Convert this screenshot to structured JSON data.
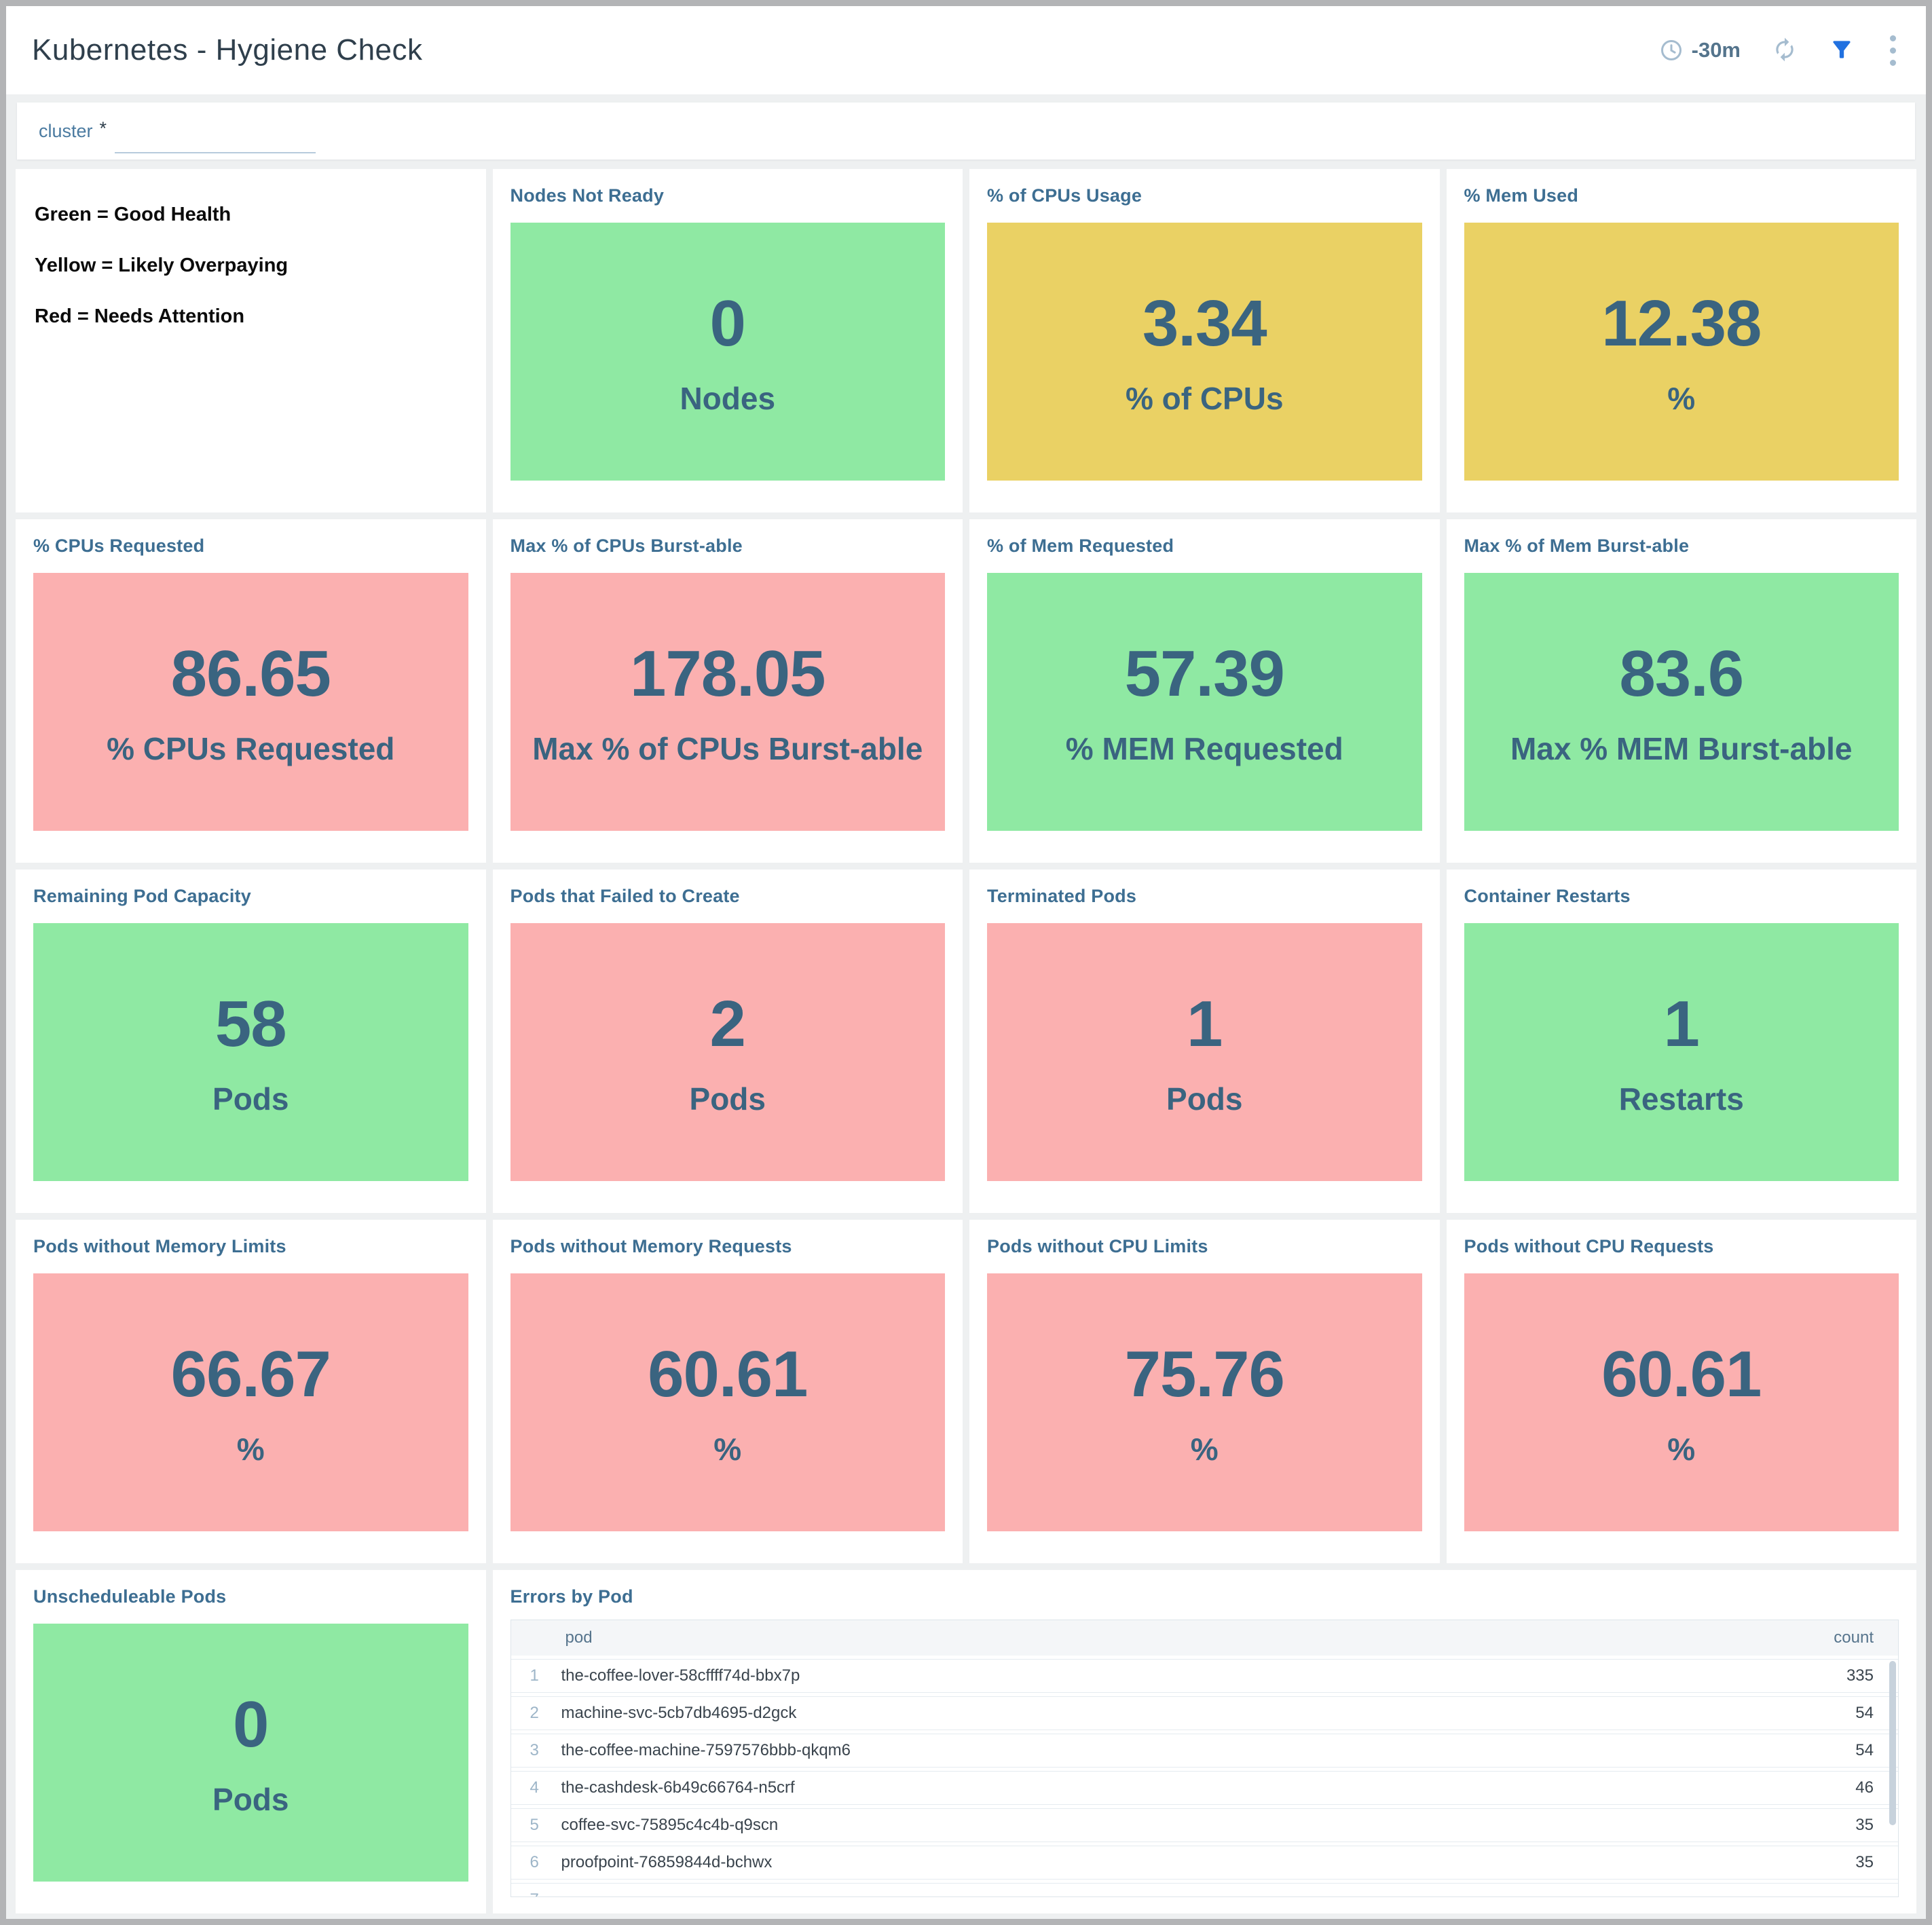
{
  "header": {
    "title": "Kubernetes - Hygiene Check",
    "time_range": "-30m"
  },
  "filter": {
    "label": "cluster",
    "required_marker": "*",
    "value": ""
  },
  "legend": {
    "lines": [
      "Green = Good Health",
      "Yellow = Likely Overpaying",
      "Red = Needs Attention"
    ]
  },
  "colors": {
    "green": "#8fe9a3",
    "yellow": "#ead164",
    "red": "#fbb0b0",
    "value_text": "#3a6480",
    "panel_title": "#3d6e92",
    "filter_icon_blue": "#2171e0",
    "muted_icon": "#a5bccf"
  },
  "panels": [
    {
      "id": "nodes-not-ready",
      "title": "Nodes Not Ready",
      "value": "0",
      "label": "Nodes",
      "status": "green"
    },
    {
      "id": "cpus-usage",
      "title": "% of CPUs Usage",
      "value": "3.34",
      "label": "% of CPUs",
      "status": "yellow"
    },
    {
      "id": "mem-used",
      "title": "% Mem Used",
      "value": "12.38",
      "label": "%",
      "status": "yellow"
    },
    {
      "id": "cpus-requested",
      "title": "% CPUs Requested",
      "value": "86.65",
      "label": "% CPUs Requested",
      "status": "red"
    },
    {
      "id": "max-cpus-burstable",
      "title": "Max % of CPUs Burst-able",
      "value": "178.05",
      "label": "Max % of CPUs Burst-able",
      "status": "red"
    },
    {
      "id": "mem-requested",
      "title": "% of Mem Requested",
      "value": "57.39",
      "label": "% MEM Requested",
      "status": "green"
    },
    {
      "id": "max-mem-burstable",
      "title": "Max % of Mem Burst-able",
      "value": "83.6",
      "label": "Max % MEM Burst-able",
      "status": "green"
    },
    {
      "id": "remaining-pod-capacity",
      "title": "Remaining Pod Capacity",
      "value": "58",
      "label": "Pods",
      "status": "green"
    },
    {
      "id": "pods-failed-to-create",
      "title": "Pods that Failed to Create",
      "value": "2",
      "label": "Pods",
      "status": "red"
    },
    {
      "id": "terminated-pods",
      "title": "Terminated Pods",
      "value": "1",
      "label": "Pods",
      "status": "red"
    },
    {
      "id": "container-restarts",
      "title": "Container Restarts",
      "value": "1",
      "label": "Restarts",
      "status": "green"
    },
    {
      "id": "pods-wo-memory-limits",
      "title": "Pods without Memory Limits",
      "value": "66.67",
      "label": "%",
      "status": "red"
    },
    {
      "id": "pods-wo-memory-requests",
      "title": "Pods without Memory Requests",
      "value": "60.61",
      "label": "%",
      "status": "red"
    },
    {
      "id": "pods-wo-cpu-limits",
      "title": "Pods without CPU Limits",
      "value": "75.76",
      "label": "%",
      "status": "red"
    },
    {
      "id": "pods-wo-cpu-requests",
      "title": "Pods without CPU Requests",
      "value": "60.61",
      "label": "%",
      "status": "red"
    },
    {
      "id": "unscheduleable-pods",
      "title": "Unscheduleable Pods",
      "value": "0",
      "label": "Pods",
      "status": "green"
    }
  ],
  "errors_table": {
    "title": "Errors by Pod",
    "columns": [
      "pod",
      "count"
    ],
    "rows": [
      {
        "rank": "1",
        "pod": "the-coffee-lover-58cffff74d-bbx7p",
        "count": "335"
      },
      {
        "rank": "2",
        "pod": "machine-svc-5cb7db4695-d2gck",
        "count": "54"
      },
      {
        "rank": "3",
        "pod": "the-coffee-machine-7597576bbb-qkqm6",
        "count": "54"
      },
      {
        "rank": "4",
        "pod": "the-cashdesk-6b49c66764-n5crf",
        "count": "46"
      },
      {
        "rank": "5",
        "pod": "coffee-svc-75895c4c4b-q9scn",
        "count": "35"
      },
      {
        "rank": "6",
        "pod": "proofpoint-76859844d-bchwx",
        "count": "35"
      },
      {
        "rank": "7",
        "pod": "",
        "count": ""
      }
    ]
  }
}
